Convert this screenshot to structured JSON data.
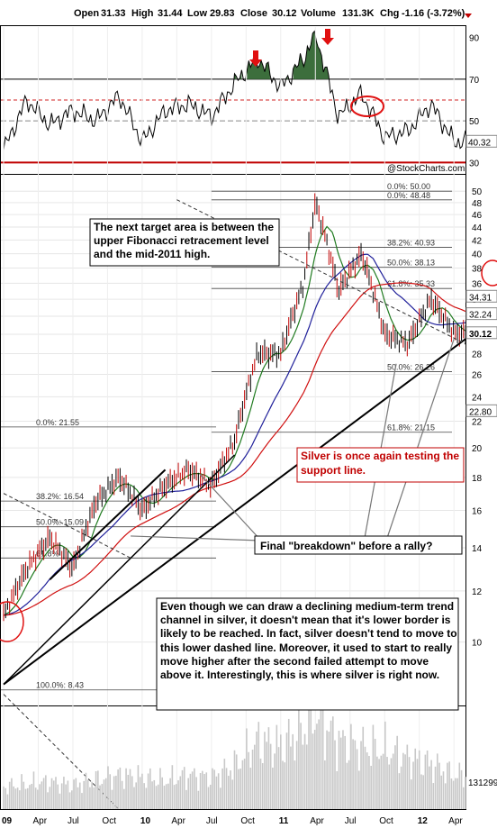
{
  "header": {
    "open_label": "Open",
    "open": "31.33",
    "high_label": "High",
    "high": "31.44",
    "low_label": "Low",
    "low": "29.83",
    "close_label": "Close",
    "close": "30.12",
    "volume_label": "Volume",
    "volume": "131.3K",
    "chg_label": "Chg",
    "chg": "-1.16 (-3.72%)"
  },
  "watermark": "@StockCharts.com",
  "colors": {
    "rsi_fill": "#3c6e3c",
    "ma_short": "#1f7a1f",
    "ma_mid": "#20209a",
    "ma_long": "#d01010",
    "price_up": "#000000",
    "price_down": "#c00000",
    "volume": "#c8c8c8",
    "arrow": "#e01010"
  },
  "annotations": {
    "target_text": "The next target area is between the upper Fibonacci retracement level and the mid-2011 high.",
    "support_text": "Silver is once again testing the support line.",
    "breakdown_text": "Final \"breakdown\" before a rally?",
    "trend_text": "Even though we can draw a declining medium-term trend channel in silver, it doesn't mean that it's lower border is likely to be reached. In fact, silver doesn't tend to move to this lower dashed line. Moreover, it used to start to really move higher after the second failed attempt to move above it. Interestingly, this is where silver is right now."
  },
  "chart_data": [
    {
      "type": "line",
      "panel": "RSI",
      "y_ticks": [
        30,
        50,
        70,
        90
      ],
      "ylim": [
        25,
        95
      ],
      "last_value_label": "40.32",
      "reference_lines": [
        30,
        50,
        60,
        70
      ],
      "x": [
        "2009-01",
        "2009-03",
        "2009-05",
        "2009-07",
        "2009-09",
        "2009-11",
        "2010-01",
        "2010-03",
        "2010-05",
        "2010-07",
        "2010-09",
        "2010-11",
        "2011-01",
        "2011-03",
        "2011-04",
        "2011-06",
        "2011-08",
        "2011-10",
        "2011-12",
        "2012-02",
        "2012-04"
      ],
      "values": [
        36,
        60,
        48,
        55,
        50,
        62,
        40,
        55,
        58,
        52,
        68,
        80,
        66,
        80,
        92,
        52,
        63,
        42,
        45,
        58,
        40
      ]
    },
    {
      "type": "line",
      "panel": "Price",
      "series_name": "Silver",
      "log_scale": true,
      "y_ticks": [
        10,
        12,
        14,
        16,
        18,
        20,
        22,
        24,
        26,
        28,
        30,
        32,
        34,
        36,
        38,
        40,
        42,
        44,
        46,
        48,
        50
      ],
      "ylim": [
        8,
        52
      ],
      "x_tick_labels": [
        "09",
        "Apr",
        "Jul",
        "Oct",
        "10",
        "Apr",
        "Jul",
        "Oct",
        "11",
        "Apr",
        "Jul",
        "Oct",
        "12",
        "Apr"
      ],
      "price_labels": [
        "34.31",
        "32.24",
        "30.12",
        "22.80"
      ],
      "fibonacci_right": [
        {
          "label": "0.0%: 50.00",
          "value": 50.0
        },
        {
          "label": "0.0%: 48.48",
          "value": 48.48
        },
        {
          "label": "38.2%: 40.93",
          "value": 40.93
        },
        {
          "label": "50.0%: 38.13",
          "value": 38.13
        },
        {
          "label": "61.8%: 35.33",
          "value": 35.33
        },
        {
          "label": "50.0%: 26.26",
          "value": 26.26
        },
        {
          "label": "61.8%: 21.15",
          "value": 21.15
        }
      ],
      "fibonacci_left": [
        {
          "label": "0.0%: 21.55",
          "value": 21.55
        },
        {
          "label": "38.2%: 16.54",
          "value": 16.54
        },
        {
          "label": "50.0%: 15.09",
          "value": 15.09
        },
        {
          "label": "61.8%",
          "value": 13.5
        },
        {
          "label": "100.0%: 8.43",
          "value": 8.43
        }
      ],
      "x": [
        "2009-01",
        "2009-03",
        "2009-05",
        "2009-07",
        "2009-09",
        "2009-11",
        "2010-01",
        "2010-03",
        "2010-05",
        "2010-07",
        "2010-09",
        "2010-11",
        "2011-01",
        "2011-03",
        "2011-04",
        "2011-06",
        "2011-08",
        "2011-10",
        "2011-12",
        "2012-02",
        "2012-04"
      ],
      "close": [
        11.0,
        13.0,
        14.5,
        13.0,
        16.5,
        18.0,
        16.0,
        17.5,
        18.5,
        17.5,
        20.5,
        28.0,
        28.0,
        36.0,
        48.0,
        35.0,
        40.0,
        30.0,
        29.0,
        34.0,
        30.12
      ]
    },
    {
      "type": "bar",
      "panel": "Volume",
      "last_value_label": "131299",
      "x": [
        "2009-01",
        "2009-03",
        "2009-05",
        "2009-07",
        "2009-09",
        "2009-11",
        "2010-01",
        "2010-03",
        "2010-05",
        "2010-07",
        "2010-09",
        "2010-11",
        "2011-01",
        "2011-03",
        "2011-04",
        "2011-06",
        "2011-08",
        "2011-10",
        "2011-12",
        "2012-02",
        "2012-04"
      ],
      "values": [
        20,
        22,
        24,
        21,
        26,
        30,
        28,
        25,
        30,
        28,
        38,
        60,
        55,
        70,
        85,
        60,
        55,
        52,
        45,
        40,
        30
      ]
    }
  ]
}
